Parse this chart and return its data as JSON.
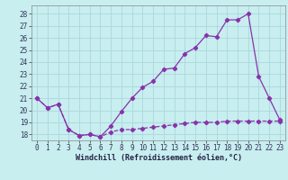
{
  "xlabel": "Windchill (Refroidissement éolien,°C)",
  "background_color": "#c8eef0",
  "grid_color": "#aad8dc",
  "line_color": "#8833aa",
  "xlim": [
    -0.5,
    23.5
  ],
  "ylim": [
    17.5,
    28.7
  ],
  "xticks": [
    0,
    1,
    2,
    3,
    4,
    5,
    6,
    7,
    8,
    9,
    10,
    11,
    12,
    13,
    14,
    15,
    16,
    17,
    18,
    19,
    20,
    21,
    22,
    23
  ],
  "yticks": [
    18,
    19,
    20,
    21,
    22,
    23,
    24,
    25,
    26,
    27,
    28
  ],
  "line1_x": [
    0,
    1,
    2,
    3,
    4,
    5,
    6,
    7,
    8,
    9,
    10,
    11,
    12,
    13,
    14,
    15,
    16,
    17,
    18,
    19,
    20,
    21,
    22,
    23
  ],
  "line1_y": [
    21.0,
    20.2,
    20.5,
    18.4,
    17.9,
    18.0,
    17.8,
    18.7,
    19.9,
    21.0,
    21.9,
    22.4,
    23.4,
    23.5,
    24.7,
    25.2,
    26.2,
    26.1,
    27.5,
    27.5,
    28.0,
    22.8,
    21.0,
    19.2
  ],
  "line2_x": [
    0,
    1,
    2,
    3,
    4,
    5,
    6,
    7,
    8,
    9,
    10,
    11,
    12,
    13,
    14,
    15,
    16,
    17,
    18,
    19,
    20,
    21,
    22,
    23
  ],
  "line2_y": [
    21.0,
    20.2,
    20.5,
    18.4,
    17.9,
    18.0,
    17.8,
    18.2,
    18.4,
    18.4,
    18.5,
    18.6,
    18.7,
    18.8,
    18.9,
    19.0,
    19.0,
    19.0,
    19.1,
    19.1,
    19.1,
    19.1,
    19.1,
    19.1
  ],
  "marker": "D",
  "markersize": 2.2,
  "linewidth": 0.9,
  "xlabel_fontsize": 6.0,
  "tick_fontsize": 5.5
}
